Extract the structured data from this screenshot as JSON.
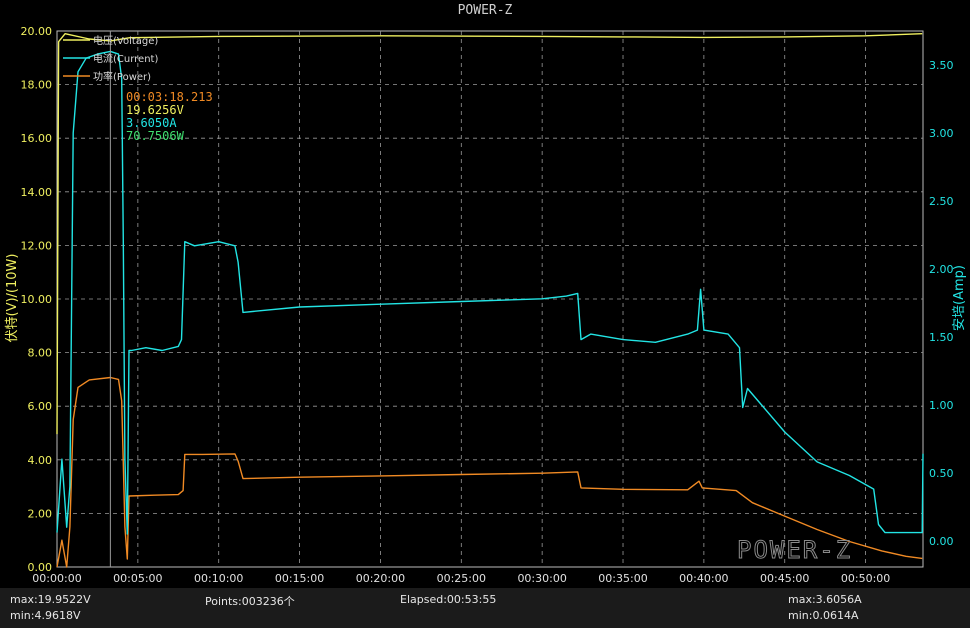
{
  "title": "POWER-Z",
  "chart_data": {
    "type": "line",
    "title": "POWER-Z",
    "ylabel_left": "伏特(V)/(10W)",
    "ylabel_right": "安培(Amp)",
    "y_left_ticks": [
      "0.00",
      "2.00",
      "4.00",
      "6.00",
      "8.00",
      "10.00",
      "12.00",
      "14.00",
      "16.00",
      "18.00",
      "20.00"
    ],
    "y_left_range": [
      0,
      20
    ],
    "y_right_ticks": [
      "0.00",
      "0.50",
      "1.00",
      "1.50",
      "2.00",
      "2.50",
      "3.00",
      "3.50"
    ],
    "y_right_range": [
      -0.193,
      3.75
    ],
    "x_ticks": [
      "00:00:00",
      "00:05:00",
      "00:10:00",
      "00:15:00",
      "00:20:00",
      "00:25:00",
      "00:30:00",
      "00:35:00",
      "00:40:00",
      "00:45:00",
      "00:50:00"
    ],
    "x_range_min": [
      0,
      53.55
    ],
    "grid": true,
    "legend_position": "top-left",
    "legend": [
      {
        "label": "电压(Voltage)",
        "color": "#f0f060"
      },
      {
        "label": "电流(Current)",
        "color": "#22e4e4"
      },
      {
        "label": "功率(Power)",
        "color": "#f08a24"
      }
    ],
    "cursor": {
      "x_min": 3.3,
      "time": "00:03:18.213",
      "voltage": "19.6256V",
      "current": "3.6050A",
      "power": "70.7506W"
    },
    "series": [
      {
        "name": "电压(Voltage)",
        "axis": "left",
        "color": "#f0f060",
        "points": [
          [
            0,
            4.96
          ],
          [
            0.1,
            19.6
          ],
          [
            0.5,
            19.9
          ],
          [
            2,
            19.7
          ],
          [
            3.3,
            19.63
          ],
          [
            4.5,
            19.75
          ],
          [
            10,
            19.8
          ],
          [
            20,
            19.82
          ],
          [
            30,
            19.8
          ],
          [
            35,
            19.78
          ],
          [
            40,
            19.76
          ],
          [
            45,
            19.78
          ],
          [
            50,
            19.82
          ],
          [
            53.5,
            19.9
          ]
        ]
      },
      {
        "name": "电流(Current)",
        "axis": "right",
        "color": "#22e4e4",
        "points": [
          [
            0,
            0.06
          ],
          [
            0.3,
            0.6
          ],
          [
            0.6,
            0.1
          ],
          [
            0.8,
            0.4
          ],
          [
            1.0,
            3.0
          ],
          [
            1.3,
            3.45
          ],
          [
            1.8,
            3.55
          ],
          [
            2.5,
            3.58
          ],
          [
            3.3,
            3.6
          ],
          [
            3.8,
            3.58
          ],
          [
            4.0,
            3.4
          ],
          [
            4.1,
            2.2
          ],
          [
            4.2,
            0.6
          ],
          [
            4.35,
            0.05
          ],
          [
            4.45,
            1.4
          ],
          [
            4.6,
            1.4
          ],
          [
            5.5,
            1.42
          ],
          [
            6.5,
            1.4
          ],
          [
            7.5,
            1.43
          ],
          [
            7.7,
            1.48
          ],
          [
            7.9,
            2.2
          ],
          [
            8.5,
            2.17
          ],
          [
            10,
            2.2
          ],
          [
            11,
            2.17
          ],
          [
            11.2,
            2.05
          ],
          [
            11.5,
            1.68
          ],
          [
            15,
            1.72
          ],
          [
            20,
            1.74
          ],
          [
            25,
            1.76
          ],
          [
            30,
            1.78
          ],
          [
            31.5,
            1.8
          ],
          [
            32.2,
            1.82
          ],
          [
            32.4,
            1.48
          ],
          [
            33,
            1.52
          ],
          [
            35,
            1.48
          ],
          [
            37,
            1.46
          ],
          [
            39,
            1.52
          ],
          [
            39.6,
            1.55
          ],
          [
            39.8,
            1.85
          ],
          [
            40.0,
            1.55
          ],
          [
            41.5,
            1.52
          ],
          [
            42.2,
            1.42
          ],
          [
            42.4,
            0.98
          ],
          [
            42.7,
            1.12
          ],
          [
            45,
            0.8
          ],
          [
            47,
            0.58
          ],
          [
            49,
            0.48
          ],
          [
            50.5,
            0.38
          ],
          [
            50.8,
            0.12
          ],
          [
            51.2,
            0.06
          ],
          [
            53.5,
            0.06
          ],
          [
            53.55,
            0.64
          ]
        ]
      },
      {
        "name": "功率(Power)",
        "axis": "left",
        "color": "#f08a24",
        "points": [
          [
            0,
            0.0
          ],
          [
            0.3,
            1.0
          ],
          [
            0.6,
            0.0
          ],
          [
            0.8,
            1.5
          ],
          [
            1.0,
            5.5
          ],
          [
            1.3,
            6.7
          ],
          [
            2,
            6.98
          ],
          [
            3.3,
            7.07
          ],
          [
            3.8,
            7.0
          ],
          [
            4.0,
            6.2
          ],
          [
            4.2,
            1.5
          ],
          [
            4.35,
            0.3
          ],
          [
            4.45,
            2.65
          ],
          [
            6,
            2.68
          ],
          [
            7.5,
            2.7
          ],
          [
            7.8,
            2.85
          ],
          [
            7.9,
            4.2
          ],
          [
            9,
            4.2
          ],
          [
            11,
            4.22
          ],
          [
            11.2,
            3.95
          ],
          [
            11.5,
            3.3
          ],
          [
            15,
            3.35
          ],
          [
            20,
            3.4
          ],
          [
            25,
            3.45
          ],
          [
            30,
            3.5
          ],
          [
            32.2,
            3.55
          ],
          [
            32.4,
            2.95
          ],
          [
            35,
            2.9
          ],
          [
            39,
            2.88
          ],
          [
            39.7,
            3.2
          ],
          [
            39.9,
            2.95
          ],
          [
            42,
            2.85
          ],
          [
            43,
            2.4
          ],
          [
            45,
            1.9
          ],
          [
            47,
            1.4
          ],
          [
            49,
            0.95
          ],
          [
            51,
            0.6
          ],
          [
            52.5,
            0.4
          ],
          [
            53.5,
            0.32
          ]
        ]
      }
    ]
  },
  "footer": {
    "max_voltage": "max:19.9522V",
    "min_voltage": "min:4.9618V",
    "points": "Points:003236个",
    "elapsed": "Elapsed:00:53:55",
    "max_current": "max:3.6056A",
    "min_current": "min:0.0614A"
  },
  "watermark": "POWER-Z"
}
